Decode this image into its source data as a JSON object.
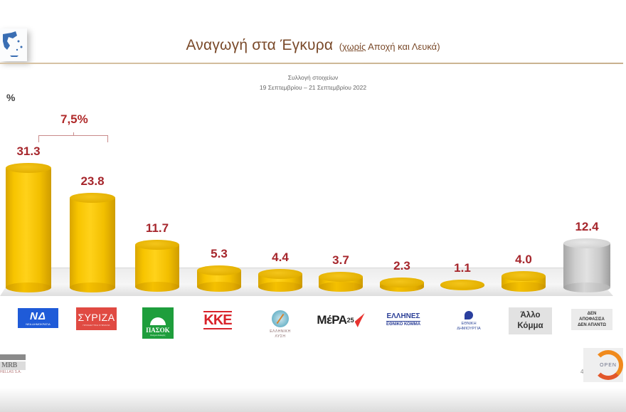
{
  "header": {
    "title_main": "Αναγωγή στα Έγκυρα",
    "title_paren_open": "(",
    "title_underlined": "χωρίς",
    "title_rest": " Αποχή και Λευκά)",
    "collection_label": "Συλλογή στοιχείων",
    "collection_dates": "19 Σεπτεμβρίου  –  21 Σεπτεμβρίου 2022"
  },
  "unit_label": "%",
  "gap_annotation": "7,5%",
  "chart_data": {
    "type": "bar",
    "title": "Αναγωγή στα Έγκυρα (χωρίς Αποχή και Λευκά)",
    "subtitle": "Συλλογή στοιχείων 19 Σεπτεμβρίου – 21 Σεπτεμβρίου 2022",
    "xlabel": "",
    "ylabel": "%",
    "categories": [
      "ΝΔ",
      "ΣΥΡΙΖΑ",
      "ΠΑΣΟΚ",
      "ΚΚΕ",
      "Ελληνική Λύση",
      "ΜέΡΑ25",
      "Έλληνες Εθνικό Κόμμα",
      "Εθνική Δημιουργία",
      "Άλλο Κόμμα",
      "Δεν αποφάσισα / Δεν απαντώ"
    ],
    "values": [
      31.3,
      23.8,
      11.7,
      5.3,
      4.4,
      3.7,
      2.3,
      1.1,
      4.0,
      12.4
    ],
    "value_labels": [
      "31.3",
      "23.8",
      "11.7",
      "5.3",
      "4.4",
      "3.7",
      "2.3",
      "1.1",
      "4.0",
      "12.4"
    ],
    "bar_colors": [
      "#f5c000",
      "#f5c000",
      "#f5c000",
      "#f5c000",
      "#f5c000",
      "#f5c000",
      "#f5c000",
      "#f5c000",
      "#f5c000",
      "#c8c8c8"
    ],
    "annotations": [
      {
        "text": "7,5%",
        "between": [
          "ΝΔ",
          "ΣΥΡΙΖΑ"
        ]
      }
    ],
    "grid": false,
    "legend": "none",
    "style": "3d-cylinder"
  },
  "logos": {
    "nd": {
      "big": "ΝΔ",
      "small": "ΝΕΑ ΔΗΜΟΚΡΑΤΙΑ"
    },
    "syriza": {
      "big": "ΣΥΡΙΖΑ",
      "small": "ΠΡΟΟΔΕΥΤΙΚΗ ΣΥΜΜΑΧΙΑ"
    },
    "pasok": {
      "big": "ΠΑΣΟΚ",
      "small": "Κίνημα Αλλαγής"
    },
    "kke": {
      "big": "ΚΚΕ"
    },
    "ellisi": {
      "line1": "ΕΛΛΗΝΙΚΗ",
      "line2": "ΛΥΣΗ"
    },
    "mera": {
      "big": "ΜέΡΑ",
      "num": "25"
    },
    "ellines": {
      "big": "ΕΛΛΗΝΕΣ",
      "small": "ΕΘΝΙΚΟ ΚΟΜΜΑ"
    },
    "edim": {
      "line1": "ΕΘΝΙΚΗ",
      "line2": "ΔΗΜΙΟΥΡΓΙΑ"
    },
    "other": {
      "line1": "Άλλο",
      "line2": "Κόμμα"
    },
    "undecided": {
      "line1": "ΔΕΝ",
      "line2": "ΑΠΟΦΑΣΙΣΑ",
      "line3": "ΔΕΝ ΑΠΑΝΤΩ"
    }
  },
  "footer": {
    "pollster": "MRB",
    "pollster_sub": "HELLAS S.A.",
    "page_number": "4",
    "channel": "OPEN"
  }
}
